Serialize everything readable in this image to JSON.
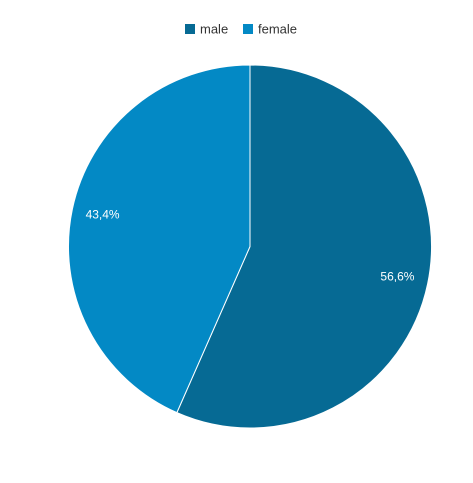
{
  "chart_data": {
    "type": "pie",
    "categories": [
      "male",
      "female"
    ],
    "values": [
      56.6,
      43.4
    ],
    "value_labels": [
      "56,6%",
      "43,4%"
    ],
    "colors": [
      "#066a94",
      "#0389c5"
    ]
  }
}
